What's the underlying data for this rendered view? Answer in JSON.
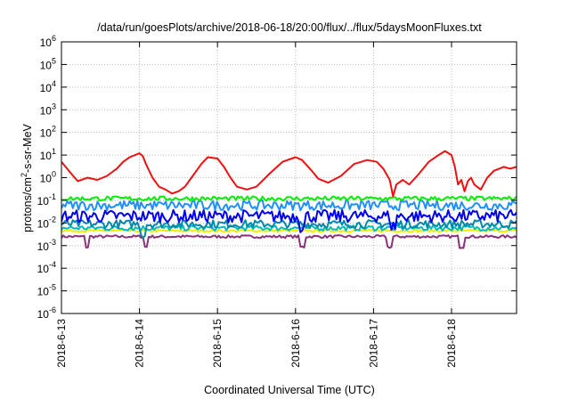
{
  "chart_data": {
    "type": "line",
    "title": "/data/run/goesPlots/archive/2018-06-18/20:00/flux/../flux/5daysMoonFluxes.txt",
    "xlabel": "Coordinated Universal Time (UTC)",
    "ylabel": {
      "pre": "protons/cm",
      "sup": "2",
      "post": "-s-sr-MeV"
    },
    "yscale": "log",
    "ylim": [
      1e-06,
      1000000.0
    ],
    "y_ticks": [
      {
        "exp": -6,
        "base": "10",
        "power": "-6"
      },
      {
        "exp": -5,
        "base": "10",
        "power": "-5"
      },
      {
        "exp": -4,
        "base": "10",
        "power": "-4"
      },
      {
        "exp": -3,
        "base": "10",
        "power": "-3"
      },
      {
        "exp": -2,
        "base": "10",
        "power": "-2"
      },
      {
        "exp": -1,
        "base": "10",
        "power": "-1"
      },
      {
        "exp": 0,
        "base": "10",
        "power": "0"
      },
      {
        "exp": 1,
        "base": "10",
        "power": "1"
      },
      {
        "exp": 2,
        "base": "10",
        "power": "2"
      },
      {
        "exp": 3,
        "base": "10",
        "power": "3"
      },
      {
        "exp": 4,
        "base": "10",
        "power": "4"
      },
      {
        "exp": 5,
        "base": "10",
        "power": "5"
      },
      {
        "exp": 6,
        "base": "10",
        "power": "6"
      }
    ],
    "xlim": [
      "2018-06-13T00:00",
      "2018-06-18T20:00"
    ],
    "x_ticks": [
      {
        "date": "2018-06-13T00:00",
        "label": "2018-6-13"
      },
      {
        "date": "2018-06-14T00:00",
        "label": "2018-6-14"
      },
      {
        "date": "2018-06-15T00:00",
        "label": "2018-6-15"
      },
      {
        "date": "2018-06-16T00:00",
        "label": "2018-6-16"
      },
      {
        "date": "2018-06-17T00:00",
        "label": "2018-6-17"
      },
      {
        "date": "2018-06-18T00:00",
        "label": "2018-6-18"
      }
    ],
    "grid": true,
    "series": [
      {
        "color": "#ee1111",
        "points": [
          [
            "2018-06-13T00:00",
            5
          ],
          [
            "2018-06-13T03:00",
            1.5
          ],
          [
            "2018-06-13T05:00",
            0.7
          ],
          [
            "2018-06-13T08:00",
            1.0
          ],
          [
            "2018-06-13T11:00",
            0.8
          ],
          [
            "2018-06-13T14:00",
            1.2
          ],
          [
            "2018-06-13T17:00",
            2.5
          ],
          [
            "2018-06-13T19:00",
            5.0
          ],
          [
            "2018-06-13T21:00",
            8.0
          ],
          [
            "2018-06-14T00:00",
            12
          ],
          [
            "2018-06-14T01:00",
            9
          ],
          [
            "2018-06-14T02:00",
            4
          ],
          [
            "2018-06-14T04:00",
            1.0
          ],
          [
            "2018-06-14T06:00",
            0.4
          ],
          [
            "2018-06-14T08:00",
            0.3
          ],
          [
            "2018-06-14T10:00",
            0.2
          ],
          [
            "2018-06-14T12:00",
            0.25
          ],
          [
            "2018-06-14T14:00",
            0.4
          ],
          [
            "2018-06-14T16:00",
            1.0
          ],
          [
            "2018-06-14T19:00",
            4.0
          ],
          [
            "2018-06-14T21:00",
            8.0
          ],
          [
            "2018-06-15T00:00",
            7.0
          ],
          [
            "2018-06-15T02:00",
            3.0
          ],
          [
            "2018-06-15T04:00",
            1.0
          ],
          [
            "2018-06-15T06:00",
            0.4
          ],
          [
            "2018-06-15T09:00",
            0.3
          ],
          [
            "2018-06-15T12:00",
            0.4
          ],
          [
            "2018-06-15T16:00",
            1.5
          ],
          [
            "2018-06-15T20:00",
            5.0
          ],
          [
            "2018-06-16T00:00",
            8.0
          ],
          [
            "2018-06-16T02:00",
            6.0
          ],
          [
            "2018-06-16T05:00",
            2.0
          ],
          [
            "2018-06-16T07:00",
            0.9
          ],
          [
            "2018-06-16T10:00",
            0.6
          ],
          [
            "2018-06-16T14:00",
            1.2
          ],
          [
            "2018-06-16T18:00",
            4.0
          ],
          [
            "2018-06-16T22:00",
            6.0
          ],
          [
            "2018-06-17T01:00",
            5.0
          ],
          [
            "2018-06-17T03:00",
            2.5
          ],
          [
            "2018-06-17T05:00",
            0.8
          ],
          [
            "2018-06-17T06:00",
            0.15
          ],
          [
            "2018-06-17T07:00",
            0.5
          ],
          [
            "2018-06-17T09:00",
            0.8
          ],
          [
            "2018-06-17T11:00",
            0.5
          ],
          [
            "2018-06-17T14:00",
            1.5
          ],
          [
            "2018-06-17T17:00",
            5.0
          ],
          [
            "2018-06-17T20:00",
            10
          ],
          [
            "2018-06-17T22:00",
            15
          ],
          [
            "2018-06-18T00:00",
            10
          ],
          [
            "2018-06-18T01:00",
            3.0
          ],
          [
            "2018-06-18T02:00",
            0.5
          ],
          [
            "2018-06-18T03:00",
            0.8
          ],
          [
            "2018-06-18T04:00",
            0.25
          ],
          [
            "2018-06-18T05:00",
            0.7
          ],
          [
            "2018-06-18T06:00",
            1.0
          ],
          [
            "2018-06-18T07:00",
            0.5
          ],
          [
            "2018-06-18T09:00",
            0.3
          ],
          [
            "2018-06-18T11:00",
            1.0
          ],
          [
            "2018-06-18T13:00",
            2.0
          ],
          [
            "2018-06-18T16:00",
            3.0
          ],
          [
            "2018-06-18T18:00",
            2.5
          ],
          [
            "2018-06-18T20:00",
            3.0
          ]
        ]
      },
      {
        "color": "#00ee00",
        "level": 0.12,
        "jitter": 0.1,
        "dips": []
      },
      {
        "color": "#1e90ff",
        "level": 0.06,
        "jitter": 0.22,
        "dips": []
      },
      {
        "color": "#0000ee",
        "level": 0.02,
        "jitter": 0.28,
        "dips": [
          "2018-06-16T02:00",
          "2018-06-17T06:00"
        ]
      },
      {
        "color": "#0088aa",
        "level": 0.009,
        "jitter": 0.18,
        "dips": [
          "2018-06-14T01:00"
        ]
      },
      {
        "color": "#00bbbb",
        "level": 0.006,
        "jitter": 0.12,
        "dips": []
      },
      {
        "color": "#eeee00",
        "level": 0.0045,
        "jitter": 0.05,
        "dips": []
      },
      {
        "color": "#883377",
        "level": 0.0025,
        "jitter": 0.06,
        "dips": [
          "2018-06-13T08:00",
          "2018-06-14T02:00",
          "2018-06-16T02:00",
          "2018-06-17T05:00",
          "2018-06-18T03:00"
        ]
      }
    ]
  }
}
